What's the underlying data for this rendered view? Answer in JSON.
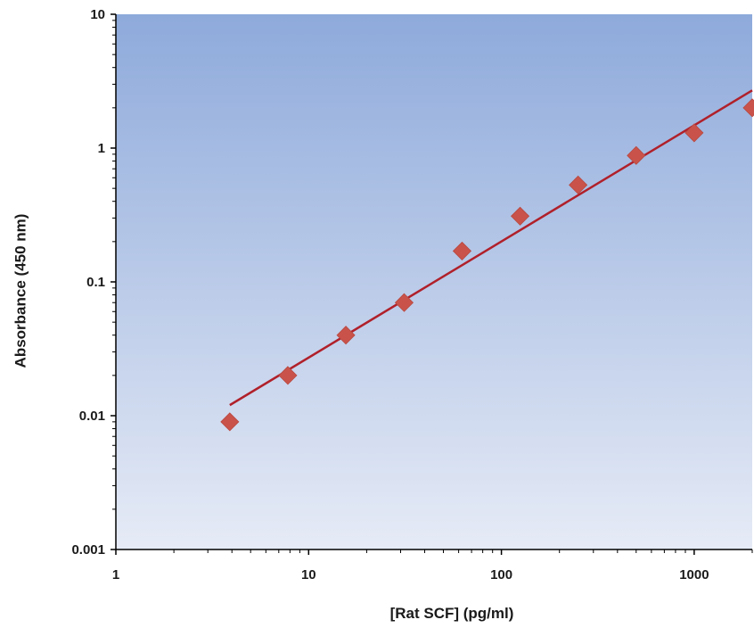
{
  "chart_data": {
    "type": "scatter",
    "title": "",
    "xlabel": "[Rat SCF] (pg/ml)",
    "ylabel": "Absorbance (450 nm)",
    "xscale": "log",
    "yscale": "log",
    "xlim": [
      1,
      2000
    ],
    "ylim": [
      0.001,
      10
    ],
    "xticks": [
      "1",
      "10",
      "100",
      "1000"
    ],
    "yticks": [
      "0.001",
      "0.01",
      "0.1",
      "1",
      "10"
    ],
    "grid": false,
    "legend": "none",
    "colors": {
      "points": "#c9534a",
      "fit_line": "#b0202a",
      "plot_bg_top": "#8eaadb",
      "plot_bg_bottom": "#e6ebf6"
    },
    "series": [
      {
        "marker": "diamond",
        "x": [
          3.9,
          7.8,
          15.6,
          31.3,
          62.5,
          125,
          250,
          500,
          1000,
          2000
        ],
        "y": [
          0.009,
          0.02,
          0.04,
          0.07,
          0.17,
          0.31,
          0.53,
          0.88,
          1.3,
          2.0
        ]
      }
    ],
    "fit_line": {
      "x": [
        3.9,
        2000
      ],
      "y": [
        0.012,
        2.7
      ]
    }
  }
}
